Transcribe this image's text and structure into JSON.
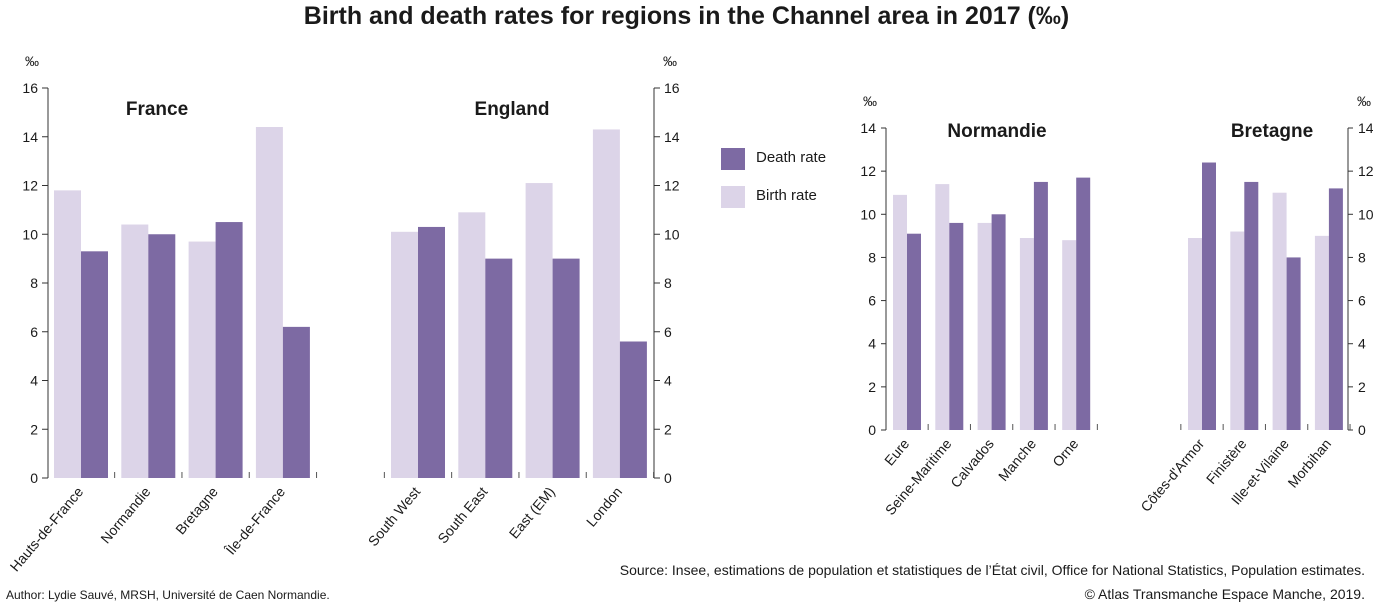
{
  "title": "Birth and death rates for regions in the Channel area in 2017 (‰)",
  "legend": [
    {
      "label": "Death rate",
      "color": "#7d6aa3"
    },
    {
      "label": "Birth rate",
      "color": "#dcd4e8"
    }
  ],
  "source": "Source: Insee, estimations de population et statistiques de l’État civil, Office for National Statistics, Population estimates.",
  "author": "Author: Lydie Sauvé, MRSH, Université de Caen Normandie.",
  "credit": "© Atlas Transmanche Espace Manche, 2019.",
  "chart_data": [
    {
      "type": "bar",
      "title": "France",
      "unit": "‰",
      "ylim": [
        0,
        16
      ],
      "yticks": [
        0,
        2,
        4,
        6,
        8,
        10,
        12,
        14,
        16
      ],
      "categories": [
        "Hauts-de-France",
        "Normandie",
        "Bretagne",
        "Île-de-France"
      ],
      "series": [
        {
          "name": "Birth rate",
          "values": [
            11.8,
            10.4,
            9.7,
            14.4
          ]
        },
        {
          "name": "Death rate",
          "values": [
            9.3,
            10.0,
            10.5,
            6.2
          ]
        }
      ]
    },
    {
      "type": "bar",
      "title": "England",
      "unit": "‰",
      "ylim": [
        0,
        16
      ],
      "yticks": [
        0,
        2,
        4,
        6,
        8,
        10,
        12,
        14,
        16
      ],
      "categories": [
        "South West",
        "South East",
        "East (EM)",
        "London"
      ],
      "series": [
        {
          "name": "Birth rate",
          "values": [
            10.1,
            10.9,
            12.1,
            14.3
          ]
        },
        {
          "name": "Death rate",
          "values": [
            10.3,
            9.0,
            9.0,
            5.6
          ]
        }
      ]
    },
    {
      "type": "bar",
      "title": "Normandie",
      "unit": "‰",
      "ylim": [
        0,
        14
      ],
      "yticks": [
        0,
        2,
        4,
        6,
        8,
        10,
        12,
        14
      ],
      "categories": [
        "Eure",
        "Seine-Maritime",
        "Calvados",
        "Manche",
        "Orne"
      ],
      "series": [
        {
          "name": "Birth rate",
          "values": [
            10.9,
            11.4,
            9.6,
            8.9,
            8.8
          ]
        },
        {
          "name": "Death rate",
          "values": [
            9.1,
            9.6,
            10.0,
            11.5,
            11.7
          ]
        }
      ]
    },
    {
      "type": "bar",
      "title": "Bretagne",
      "unit": "‰",
      "ylim": [
        0,
        14
      ],
      "yticks": [
        0,
        2,
        4,
        6,
        8,
        10,
        12,
        14
      ],
      "categories": [
        "Côtes-d'Armor",
        "Finistère",
        "Ille-et-Vilaine",
        "Morbihan"
      ],
      "series": [
        {
          "name": "Birth rate",
          "values": [
            8.9,
            9.2,
            11.0,
            9.0
          ]
        },
        {
          "name": "Death rate",
          "values": [
            12.4,
            11.5,
            8.0,
            11.2
          ]
        }
      ]
    }
  ]
}
